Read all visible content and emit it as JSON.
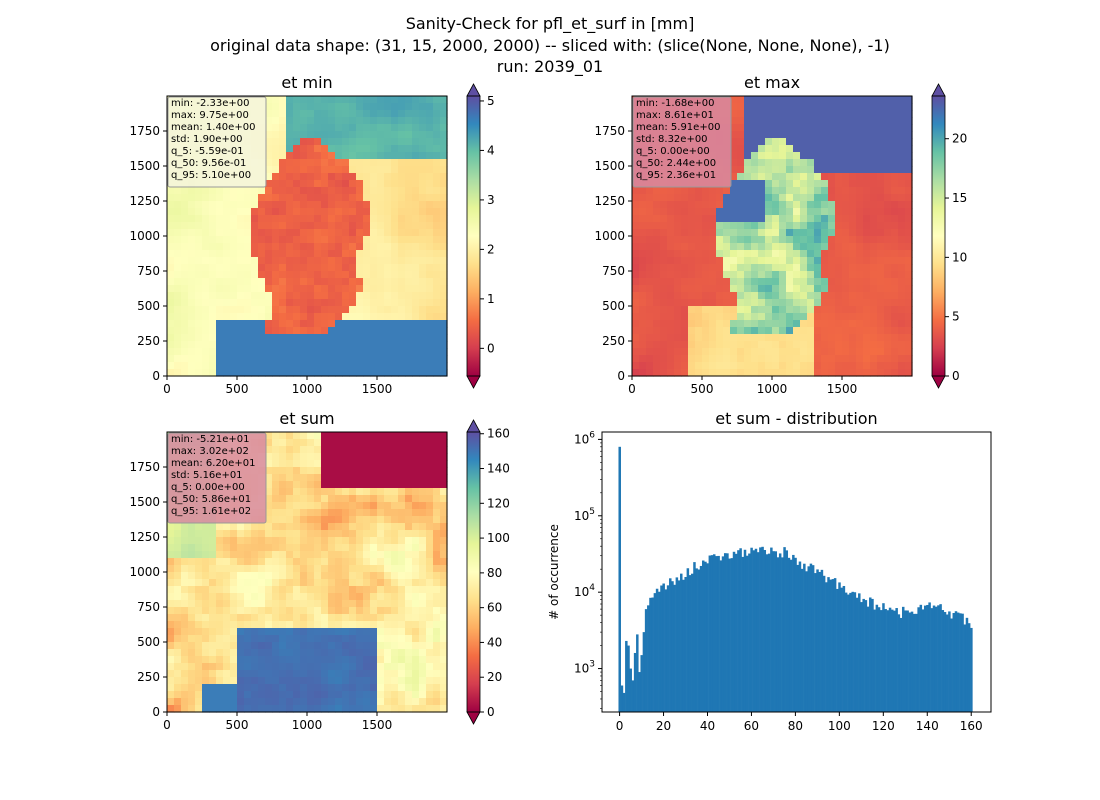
{
  "suptitle": {
    "line1": "Sanity-Check for pfl_et_surf in [mm]",
    "line2": "original data shape: (31, 15, 2000, 2000) -- sliced with: (slice(None, None, None), -1)",
    "line3": "run: 2039_01"
  },
  "map_axes": {
    "x_ticks": [
      0,
      500,
      1000,
      1500
    ],
    "y_ticks": [
      0,
      250,
      500,
      750,
      1000,
      1250,
      1500,
      1750
    ],
    "xlim": [
      0,
      2000
    ],
    "ylim": [
      0,
      2000
    ]
  },
  "colormap": {
    "name": "Spectral",
    "stops": [
      "#9e0142",
      "#d53e4f",
      "#f46d43",
      "#fdae61",
      "#fee08b",
      "#ffffbf",
      "#e6f598",
      "#abdda4",
      "#66c2a5",
      "#3288bd",
      "#5e4fa2"
    ]
  },
  "panels": [
    {
      "title": "et min",
      "stats": [
        "min: -2.33e+00",
        "max: 9.75e+00",
        "mean: 1.40e+00",
        "std: 1.90e+00",
        "q_5: -5.59e-01",
        "q_50: 9.56e-01",
        "q_95: 5.10e+00"
      ],
      "stats_box_color": "#f5f5dc",
      "colorbar": {
        "min": -0.559,
        "max": 5.1,
        "ticks": [
          0,
          1,
          2,
          3,
          4,
          5
        ]
      }
    },
    {
      "title": "et max",
      "stats": [
        "min: -1.68e+00",
        "max: 8.61e+01",
        "mean: 5.91e+00",
        "std: 8.32e+00",
        "q_5: 0.00e+00",
        "q_50: 2.44e+00",
        "q_95: 2.36e+01"
      ],
      "stats_box_color": "#d88aa0",
      "colorbar": {
        "min": 0,
        "max": 23.6,
        "ticks": [
          0,
          5,
          10,
          15,
          20
        ]
      }
    },
    {
      "title": "et sum",
      "stats": [
        "min: -5.21e+01",
        "max: 3.02e+02",
        "mean: 6.20e+01",
        "std: 5.16e+01",
        "q_5: 0.00e+00",
        "q_50: 5.86e+01",
        "q_95: 1.61e+02"
      ],
      "stats_box_color": "#d88aa0",
      "colorbar": {
        "min": 0,
        "max": 161,
        "ticks": [
          0,
          20,
          40,
          60,
          80,
          100,
          120,
          140,
          160
        ]
      }
    }
  ],
  "chart_data": {
    "type": "bar",
    "title": "et sum - distribution",
    "xlabel": "",
    "ylabel": "# of occurrence",
    "yscale": "log",
    "xlim": [
      -8,
      169
    ],
    "ylim": [
      270,
      1250000
    ],
    "x_ticks": [
      0,
      20,
      40,
      60,
      80,
      100,
      120,
      140,
      160
    ],
    "y_ticks": [
      {
        "value": 1000,
        "label": "10^3"
      },
      {
        "value": 10000,
        "label": "10^4"
      },
      {
        "value": 100000,
        "label": "10^5"
      },
      {
        "value": 1000000,
        "label": "10^6"
      }
    ],
    "bar_color": "#1f77b4",
    "x": [
      0,
      1,
      2,
      3,
      4,
      5,
      6,
      7,
      8,
      9,
      10,
      12,
      14,
      16,
      18,
      20,
      25,
      30,
      35,
      40,
      45,
      50,
      55,
      60,
      65,
      70,
      75,
      80,
      85,
      90,
      95,
      100,
      105,
      110,
      115,
      120,
      125,
      130,
      135,
      140,
      145,
      150,
      155,
      160
    ],
    "values": [
      800000,
      600,
      480,
      2300,
      2000,
      1000,
      700,
      1600,
      2800,
      900,
      1500,
      6000,
      8500,
      10500,
      11000,
      11500,
      14000,
      18000,
      22000,
      26000,
      29000,
      31000,
      33000,
      34000,
      35000,
      36000,
      33000,
      27000,
      22000,
      18000,
      15000,
      12000,
      10000,
      8500,
      7000,
      6200,
      5600,
      5600,
      6000,
      6800,
      6200,
      5400,
      4900,
      3800
    ]
  }
}
